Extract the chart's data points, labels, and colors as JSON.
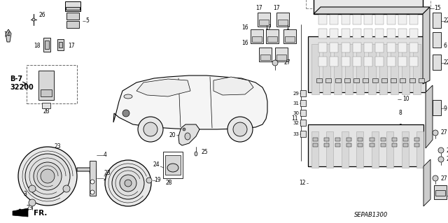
{
  "background_color": "#ffffff",
  "diagram_code": "SEPAB1300",
  "direction_label": "FR.",
  "fig_width": 6.4,
  "fig_height": 3.19,
  "dpi": 100,
  "lc": "#000000",
  "tc": "#000000",
  "fs": 5.5,
  "fs_bold": 7.0
}
